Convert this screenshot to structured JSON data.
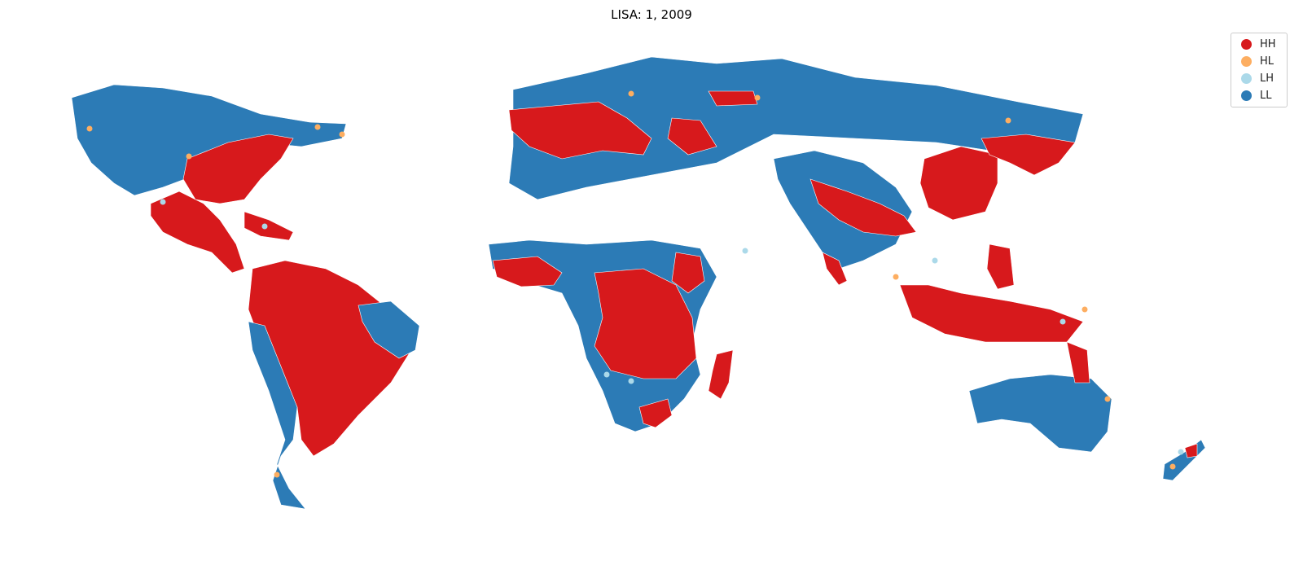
{
  "title": "LISA: 1, 2009",
  "legend": [
    {
      "label": "HH",
      "color": "#d7191c"
    },
    {
      "label": "HL",
      "color": "#fdae61"
    },
    {
      "label": "LH",
      "color": "#abd9e9"
    },
    {
      "label": "LL",
      "color": "#2c7bb6"
    }
  ],
  "chart_data": {
    "type": "map",
    "categories": [
      "HH",
      "HL",
      "LH",
      "LL"
    ],
    "legend_position": "top-right",
    "grid": false
  }
}
